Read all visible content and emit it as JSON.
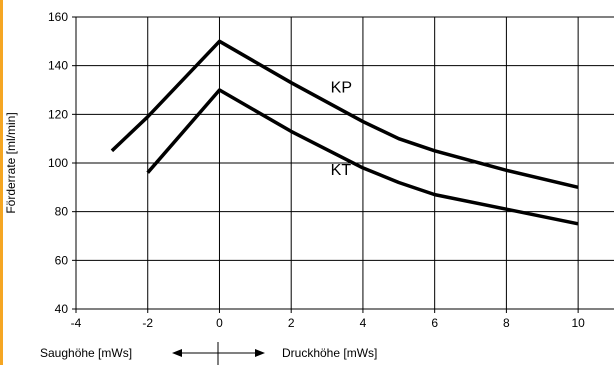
{
  "accent_strip_color": "#f5a623",
  "chart_data": {
    "type": "line",
    "title": "",
    "xlabel": "",
    "ylabel": "Förderrate [ml/min]",
    "xlim": [
      -4,
      11
    ],
    "ylim": [
      40,
      160
    ],
    "xticks": [
      -4,
      -2,
      0,
      2,
      4,
      6,
      8,
      10
    ],
    "yticks": [
      40,
      60,
      80,
      100,
      120,
      140,
      160
    ],
    "grid": true,
    "legend": "none",
    "series": [
      {
        "name": "KP",
        "color": "#000000",
        "points": [
          [
            -3,
            105
          ],
          [
            -2,
            119
          ],
          [
            0,
            150
          ],
          [
            2,
            133
          ],
          [
            4,
            117
          ],
          [
            5,
            110
          ],
          [
            6,
            105
          ],
          [
            8,
            97
          ],
          [
            10,
            90
          ]
        ]
      },
      {
        "name": "KT",
        "color": "#000000",
        "points": [
          [
            -2,
            96
          ],
          [
            0,
            130
          ],
          [
            2,
            113
          ],
          [
            4,
            98
          ],
          [
            5,
            92
          ],
          [
            6,
            87
          ],
          [
            8,
            81
          ],
          [
            10,
            75
          ]
        ]
      }
    ],
    "series_labels": [
      {
        "text": "KP",
        "x": 3.1,
        "y": 129
      },
      {
        "text": "KT",
        "x": 3.1,
        "y": 95
      }
    ],
    "bottom_annotation": {
      "left_label": "Saughöhe [mWs]",
      "right_label": "Druckhöhe [mWs]"
    }
  }
}
